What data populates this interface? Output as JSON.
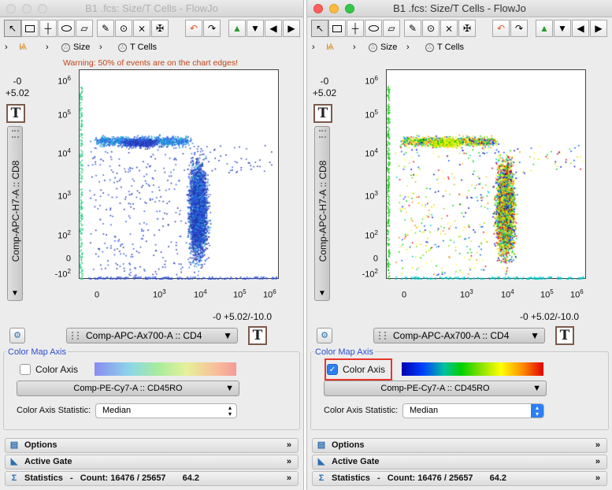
{
  "windows": [
    {
      "id": "left",
      "state": "inactive",
      "title": "B1 .fcs: Size/T Cells - FlowJo",
      "breadcrumb": {
        "gate1": "Size",
        "gate2": "T Cells"
      },
      "warning": "Warning: 50% of events are on the chart edges!",
      "y_readout": {
        "top": "-0",
        "bottom": "+5.02"
      },
      "y_axis_param": "Comp-APC-H7-A :: CD8",
      "x_readout": "-0 +5.02/-10.0",
      "x_axis_param": "Comp-APC-Ax700-A :: CD4",
      "t_button": "T",
      "color_map": {
        "title": "Color Map Axis",
        "checkbox_label": "Color Axis",
        "checked": false,
        "param": "Comp-PE-Cy7-A :: CD45RO",
        "statistic_label": "Color Axis Statistic:",
        "statistic_value": "Median"
      },
      "panels": {
        "options": "Options",
        "active_gate": "Active Gate",
        "statistics": "Statistics",
        "count": "Count: 16476 / 25657",
        "value": "64.2"
      }
    },
    {
      "id": "right",
      "state": "active",
      "title": "B1 .fcs: Size/T Cells - FlowJo",
      "breadcrumb": {
        "gate1": "Size",
        "gate2": "T Cells"
      },
      "warning": "",
      "y_readout": {
        "top": "-0",
        "bottom": "+5.02"
      },
      "y_axis_param": "Comp-APC-H7-A :: CD8",
      "x_readout": "-0 +5.02/-10.0",
      "x_axis_param": "Comp-APC-Ax700-A :: CD4",
      "t_button": "T",
      "color_map": {
        "title": "Color Map Axis",
        "checkbox_label": "Color Axis",
        "checked": true,
        "param": "Comp-PE-Cy7-A :: CD45RO",
        "statistic_label": "Color Axis Statistic:",
        "statistic_value": "Median"
      },
      "panels": {
        "options": "Options",
        "active_gate": "Active Gate",
        "statistics": "Statistics",
        "count": "Count: 16476 / 25657",
        "value": "64.2"
      }
    }
  ],
  "axis_ticks": {
    "y": [
      {
        "base": "10",
        "exp": "6"
      },
      {
        "base": "10",
        "exp": "5"
      },
      {
        "base": "10",
        "exp": "4"
      },
      {
        "base": "10",
        "exp": "3"
      },
      {
        "base": "10",
        "exp": "2"
      },
      {
        "base": "0",
        "exp": ""
      },
      {
        "base": "-10",
        "exp": "2"
      }
    ],
    "x": [
      {
        "base": "0",
        "exp": ""
      },
      {
        "base": "10",
        "exp": "3"
      },
      {
        "base": "10",
        "exp": "4"
      },
      {
        "base": "10",
        "exp": "5"
      },
      {
        "base": "10",
        "exp": "6"
      }
    ]
  },
  "toolbar_icons": [
    "pointer-icon",
    "rectangle-gate-icon",
    "quadrant-icon",
    "ellipse-gate-icon",
    "polygon-gate-icon",
    "pencil-icon",
    "spider-gate-icon",
    "quad-tool-icon",
    "spider-tool-icon",
    "undo-icon",
    "redo-icon",
    "up-icon",
    "down-icon",
    "back-icon",
    "forward-icon"
  ],
  "colors": {
    "warning": "#c0451b",
    "section_title": "#2a4fcf",
    "checkbox_on": "#2c7ff2",
    "highlight": "#e8352a"
  }
}
